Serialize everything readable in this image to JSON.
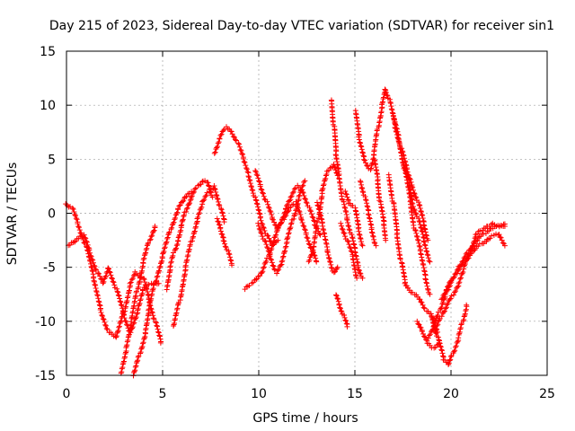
{
  "chart_data": {
    "type": "scatter",
    "title": "Day 215 of 2023, Sidereal Day-to-day VTEC variation (SDTVAR) for receiver sin1",
    "xlabel": "GPS time / hours",
    "ylabel": "SDTVAR / TECUs",
    "xlim": [
      0,
      25
    ],
    "ylim": [
      -15,
      15
    ],
    "xticks": [
      "0",
      "5",
      "10",
      "15",
      "20",
      "25"
    ],
    "yticks": [
      "-15",
      "-10",
      "-5",
      "0",
      "5",
      "10",
      "15"
    ],
    "grid": true,
    "marker": "plus",
    "series_color": "#ff0000",
    "tracks": [
      [
        [
          0.0,
          0.8
        ],
        [
          0.3,
          0.5
        ],
        [
          0.6,
          -1.0
        ],
        [
          1.0,
          -3.0
        ],
        [
          1.4,
          -6.0
        ],
        [
          1.8,
          -9.0
        ],
        [
          2.2,
          -11.0
        ],
        [
          2.6,
          -11.5
        ],
        [
          3.0,
          -9.0
        ],
        [
          3.3,
          -6.5
        ],
        [
          3.6,
          -5.5
        ],
        [
          4.0,
          -6.0
        ],
        [
          4.3,
          -8.0
        ],
        [
          4.6,
          -10.0
        ],
        [
          4.9,
          -12.0
        ]
      ],
      [
        [
          0.1,
          -3.0
        ],
        [
          0.5,
          -2.5
        ],
        [
          0.9,
          -2.0
        ],
        [
          1.2,
          -3.5
        ],
        [
          1.6,
          -5.5
        ],
        [
          1.9,
          -6.5
        ],
        [
          2.2,
          -5.0
        ],
        [
          2.6,
          -7.0
        ],
        [
          3.0,
          -9.5
        ],
        [
          3.3,
          -11.0
        ],
        [
          3.7,
          -9.0
        ],
        [
          4.0,
          -7.0
        ],
        [
          4.4,
          -6.5
        ],
        [
          4.8,
          -6.5
        ]
      ],
      [
        [
          2.8,
          -14.8
        ],
        [
          3.1,
          -12.5
        ],
        [
          3.4,
          -10.0
        ],
        [
          3.7,
          -7.0
        ],
        [
          4.0,
          -4.5
        ],
        [
          4.3,
          -2.5
        ],
        [
          4.6,
          -1.2
        ]
      ],
      [
        [
          3.5,
          -15.0
        ],
        [
          3.8,
          -13.0
        ],
        [
          4.1,
          -11.0
        ],
        [
          4.3,
          -9.0
        ],
        [
          4.6,
          -6.5
        ],
        [
          5.0,
          -4.0
        ],
        [
          5.4,
          -1.5
        ],
        [
          5.8,
          0.5
        ],
        [
          6.2,
          1.5
        ],
        [
          6.5,
          2.0
        ]
      ],
      [
        [
          5.2,
          -7.0
        ],
        [
          5.4,
          -5.0
        ],
        [
          5.6,
          -3.5
        ],
        [
          5.8,
          -2.5
        ],
        [
          6.0,
          -1.2
        ],
        [
          6.2,
          0.2
        ],
        [
          6.5,
          1.5
        ],
        [
          6.8,
          2.5
        ],
        [
          7.1,
          3.0
        ],
        [
          7.4,
          2.8
        ],
        [
          7.6,
          1.5
        ]
      ],
      [
        [
          5.6,
          -10.5
        ],
        [
          5.9,
          -8.0
        ],
        [
          6.2,
          -5.0
        ],
        [
          6.5,
          -2.5
        ],
        [
          6.8,
          -0.5
        ],
        [
          7.1,
          1.0
        ],
        [
          7.4,
          2.0
        ],
        [
          7.7,
          2.5
        ],
        [
          8.0,
          0.5
        ],
        [
          8.2,
          -0.8
        ]
      ],
      [
        [
          7.7,
          5.5
        ],
        [
          8.0,
          7.0
        ],
        [
          8.3,
          8.0
        ],
        [
          8.6,
          7.5
        ],
        [
          8.9,
          6.5
        ],
        [
          9.2,
          5.0
        ],
        [
          9.5,
          3.5
        ],
        [
          9.8,
          1.5
        ],
        [
          10.1,
          -0.5
        ],
        [
          10.4,
          -2.0
        ],
        [
          10.7,
          -3.0
        ],
        [
          11.0,
          -2.5
        ]
      ],
      [
        [
          7.8,
          -0.5
        ],
        [
          8.0,
          -1.5
        ],
        [
          8.2,
          -2.5
        ],
        [
          8.4,
          -3.5
        ],
        [
          8.6,
          -4.8
        ]
      ],
      [
        [
          9.3,
          -7.0
        ],
        [
          9.6,
          -6.5
        ],
        [
          9.9,
          -6.0
        ],
        [
          10.2,
          -5.5
        ],
        [
          10.5,
          -4.0
        ],
        [
          10.8,
          -2.5
        ],
        [
          11.1,
          -1.0
        ],
        [
          11.4,
          0.5
        ],
        [
          11.7,
          1.5
        ],
        [
          12.0,
          2.5
        ],
        [
          12.3,
          2.0
        ],
        [
          12.6,
          0.5
        ],
        [
          12.9,
          -1.0
        ],
        [
          13.2,
          -2.0
        ]
      ],
      [
        [
          9.8,
          4.0
        ],
        [
          10.1,
          2.5
        ],
        [
          10.4,
          1.0
        ],
        [
          10.7,
          -0.5
        ],
        [
          11.0,
          -1.5
        ],
        [
          11.3,
          -0.5
        ],
        [
          11.6,
          0.5
        ],
        [
          11.9,
          1.0
        ],
        [
          12.2,
          -0.5
        ],
        [
          12.5,
          -2.0
        ],
        [
          12.8,
          -3.5
        ],
        [
          13.0,
          -4.5
        ]
      ],
      [
        [
          10.0,
          -1.0
        ],
        [
          10.3,
          -2.5
        ],
        [
          10.6,
          -4.0
        ],
        [
          10.9,
          -5.5
        ],
        [
          11.2,
          -4.5
        ],
        [
          11.5,
          -2.5
        ],
        [
          11.8,
          -0.5
        ],
        [
          12.1,
          1.5
        ],
        [
          12.4,
          3.0
        ]
      ],
      [
        [
          12.6,
          -4.5
        ],
        [
          12.9,
          -3.0
        ],
        [
          13.1,
          -0.5
        ],
        [
          13.3,
          2.0
        ],
        [
          13.6,
          4.0
        ],
        [
          13.9,
          4.5
        ],
        [
          14.1,
          3.5
        ]
      ],
      [
        [
          13.0,
          1.0
        ],
        [
          13.3,
          -1.0
        ],
        [
          13.6,
          -3.5
        ],
        [
          13.9,
          -5.5
        ],
        [
          14.1,
          -5.0
        ]
      ],
      [
        [
          13.8,
          10.5
        ],
        [
          13.9,
          8.0
        ],
        [
          14.0,
          5.5
        ],
        [
          14.2,
          3.5
        ],
        [
          14.4,
          1.0
        ],
        [
          14.6,
          -0.5
        ],
        [
          14.8,
          -2.0
        ],
        [
          15.0,
          -3.5
        ],
        [
          15.2,
          -5.0
        ],
        [
          15.4,
          -6.0
        ]
      ],
      [
        [
          14.0,
          -7.5
        ],
        [
          14.2,
          -8.5
        ],
        [
          14.4,
          -9.5
        ],
        [
          14.6,
          -10.5
        ]
      ],
      [
        [
          14.3,
          -1.0
        ],
        [
          14.6,
          -2.5
        ],
        [
          14.9,
          -4.0
        ],
        [
          15.1,
          -6.0
        ]
      ],
      [
        [
          14.5,
          2.0
        ],
        [
          14.7,
          1.0
        ],
        [
          15.0,
          0.5
        ],
        [
          15.2,
          -1.5
        ],
        [
          15.4,
          -3.0
        ]
      ],
      [
        [
          15.0,
          9.5
        ],
        [
          15.2,
          7.0
        ],
        [
          15.5,
          5.0
        ],
        [
          15.8,
          4.0
        ],
        [
          16.0,
          5.5
        ],
        [
          16.2,
          8.0
        ],
        [
          16.4,
          10.0
        ],
        [
          16.6,
          11.5
        ],
        [
          16.8,
          10.5
        ],
        [
          17.1,
          8.0
        ],
        [
          17.4,
          6.0
        ],
        [
          17.7,
          4.0
        ],
        [
          18.0,
          2.5
        ],
        [
          18.3,
          1.0
        ],
        [
          18.6,
          -1.0
        ],
        [
          18.8,
          -2.5
        ]
      ],
      [
        [
          15.3,
          3.0
        ],
        [
          15.5,
          1.5
        ],
        [
          15.7,
          0.0
        ],
        [
          15.9,
          -1.5
        ],
        [
          16.1,
          -3.0
        ]
      ],
      [
        [
          16.0,
          5.0
        ],
        [
          16.2,
          3.0
        ],
        [
          16.3,
          1.0
        ],
        [
          16.5,
          -1.0
        ],
        [
          16.6,
          -2.5
        ]
      ],
      [
        [
          16.8,
          3.5
        ],
        [
          17.0,
          1.0
        ],
        [
          17.2,
          -2.0
        ],
        [
          17.4,
          -4.5
        ],
        [
          17.6,
          -6.5
        ],
        [
          17.8,
          -7.0
        ],
        [
          18.1,
          -7.5
        ],
        [
          18.4,
          -8.0
        ],
        [
          18.7,
          -9.0
        ],
        [
          19.0,
          -9.5
        ],
        [
          19.3,
          -11.0
        ]
      ],
      [
        [
          17.0,
          9.0
        ],
        [
          17.3,
          7.0
        ],
        [
          17.6,
          4.0
        ],
        [
          17.9,
          1.0
        ],
        [
          18.1,
          -1.5
        ],
        [
          18.4,
          -3.5
        ],
        [
          18.7,
          -6.0
        ],
        [
          18.9,
          -7.5
        ]
      ],
      [
        [
          17.5,
          4.5
        ],
        [
          17.8,
          3.0
        ],
        [
          18.0,
          1.0
        ],
        [
          18.3,
          -0.5
        ],
        [
          18.6,
          -2.5
        ],
        [
          18.9,
          -4.5
        ]
      ],
      [
        [
          19.0,
          -9.5
        ],
        [
          19.3,
          -11.5
        ],
        [
          19.6,
          -13.5
        ],
        [
          19.9,
          -14.0
        ],
        [
          20.1,
          -13.0
        ],
        [
          20.4,
          -11.5
        ],
        [
          20.6,
          -10.0
        ],
        [
          20.8,
          -8.5
        ]
      ],
      [
        [
          18.8,
          -11.5
        ],
        [
          19.1,
          -10.5
        ],
        [
          19.4,
          -9.0
        ],
        [
          19.7,
          -7.5
        ],
        [
          20.0,
          -6.5
        ],
        [
          20.3,
          -5.5
        ],
        [
          20.6,
          -4.5
        ],
        [
          20.9,
          -3.5
        ],
        [
          21.2,
          -2.8
        ],
        [
          21.5,
          -2.2
        ],
        [
          21.8,
          -1.8
        ],
        [
          22.1,
          -1.4
        ],
        [
          22.4,
          -1.2
        ],
        [
          22.8,
          -1.0
        ]
      ],
      [
        [
          19.2,
          -11.0
        ],
        [
          19.5,
          -9.5
        ],
        [
          19.8,
          -8.5
        ],
        [
          20.1,
          -7.5
        ],
        [
          20.4,
          -6.5
        ],
        [
          20.7,
          -5.0
        ],
        [
          21.0,
          -3.5
        ],
        [
          21.3,
          -2.0
        ],
        [
          21.6,
          -1.5
        ],
        [
          21.9,
          -1.2
        ],
        [
          22.2,
          -1.0
        ],
        [
          22.5,
          -1.2
        ],
        [
          22.8,
          -1.2
        ]
      ],
      [
        [
          19.5,
          -8.0
        ],
        [
          19.8,
          -7.0
        ],
        [
          20.1,
          -6.0
        ],
        [
          20.4,
          -5.0
        ],
        [
          20.7,
          -4.5
        ],
        [
          21.0,
          -3.8
        ],
        [
          21.3,
          -3.2
        ],
        [
          21.6,
          -2.8
        ],
        [
          21.9,
          -2.5
        ],
        [
          22.2,
          -2.0
        ],
        [
          22.5,
          -2.0
        ],
        [
          22.8,
          -3.0
        ]
      ],
      [
        [
          18.2,
          -10.0
        ],
        [
          18.5,
          -11.0
        ],
        [
          18.8,
          -12.0
        ],
        [
          19.1,
          -12.5
        ],
        [
          19.4,
          -12.0
        ]
      ]
    ]
  }
}
